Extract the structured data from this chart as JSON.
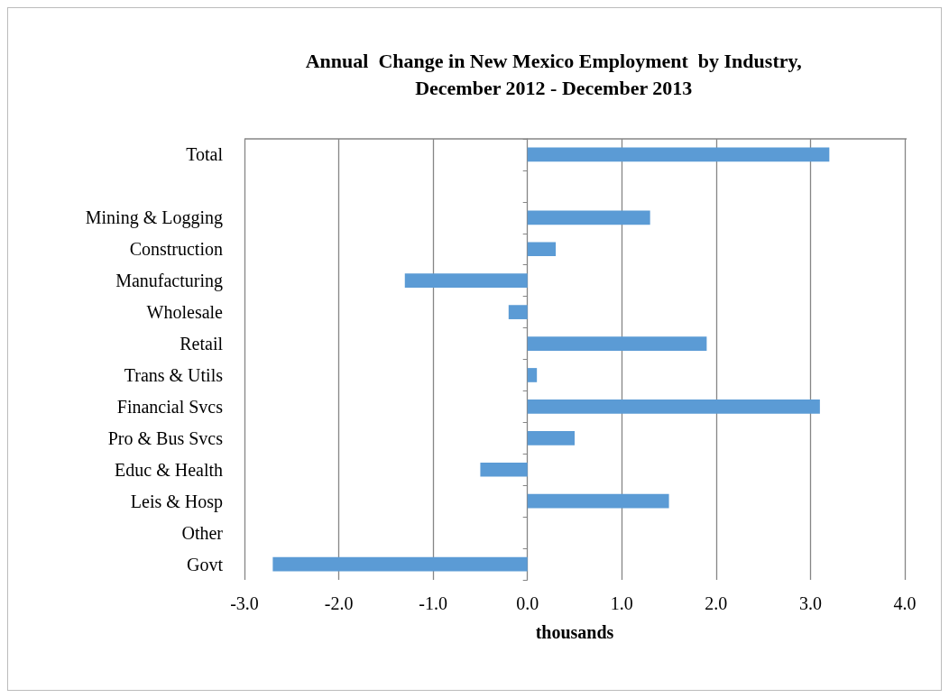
{
  "chart_data": {
    "type": "bar",
    "orientation": "horizontal",
    "title": "Annual  Change in New Mexico Employment  by Industry,\nDecember 2012 - December 2013",
    "xlabel": "thousands",
    "categories": [
      "Total",
      null,
      "Mining & Logging",
      "Construction",
      "Manufacturing",
      "Wholesale",
      "Retail",
      "Trans & Utils",
      "Financial Svcs",
      "Pro & Bus Svcs",
      "Educ & Health",
      "Leis & Hosp",
      "Other",
      "Govt"
    ],
    "values": [
      3.2,
      null,
      1.3,
      0.3,
      -1.3,
      -0.2,
      1.9,
      0.1,
      3.1,
      0.5,
      -0.5,
      1.5,
      0,
      -2.7
    ],
    "color": "#5b9bd5",
    "xlim": [
      -3,
      4
    ],
    "xticks": [
      {
        "value": -3,
        "label": "-3.0"
      },
      {
        "value": -2,
        "label": "-2.0"
      },
      {
        "value": -1,
        "label": "-1.0"
      },
      {
        "value": 0,
        "label": "0.0"
      },
      {
        "value": 1,
        "label": "1.0"
      },
      {
        "value": 2,
        "label": "2.0"
      },
      {
        "value": 3,
        "label": "3.0"
      },
      {
        "value": 4,
        "label": "4.0"
      }
    ],
    "grid": "x"
  }
}
